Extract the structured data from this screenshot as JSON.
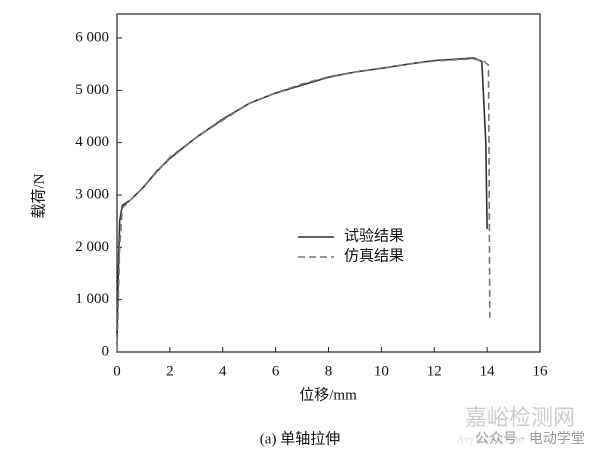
{
  "chart_data": {
    "type": "line",
    "xlabel": "位移/mm",
    "ylabel": "载荷/N",
    "caption": "(a) 单轴拉伸",
    "watermark": [
      "嘉峪检测网",
      "AnyTesting.com",
      "公众号 · 电动学堂"
    ],
    "xlim": [
      0,
      16
    ],
    "xticks": [
      0,
      2,
      4,
      6,
      8,
      10,
      12,
      14,
      16
    ],
    "ylim": [
      0,
      6000
    ],
    "yticks": [
      0,
      {
        "value": 1000,
        "label": "1 000"
      },
      {
        "value": 2000,
        "label": "2 000"
      },
      {
        "value": 3000,
        "label": "3 000"
      },
      {
        "value": 4000,
        "label": "4 000"
      },
      {
        "value": 5000,
        "label": "5 000"
      },
      {
        "value": 6000,
        "label": "6 000"
      }
    ],
    "legend": "center",
    "series": [
      {
        "name": "试验结果",
        "color": "#333333",
        "dash": "solid",
        "x": [
          0,
          0.05,
          0.1,
          0.2,
          0.5,
          1,
          1.5,
          2,
          3,
          4,
          5,
          6,
          7,
          8,
          9,
          10,
          11,
          12,
          13,
          13.5,
          13.8,
          13.95,
          14.0
        ],
        "values": [
          300,
          1500,
          2500,
          2800,
          2900,
          3150,
          3450,
          3700,
          4100,
          4450,
          4750,
          4950,
          5100,
          5250,
          5350,
          5420,
          5500,
          5570,
          5600,
          5620,
          5550,
          4000,
          2350
        ]
      },
      {
        "name": "仿真结果",
        "color": "#777777",
        "dash": "dashed",
        "x": [
          0,
          0.1,
          0.2,
          0.5,
          1,
          2,
          3,
          4,
          5,
          6,
          7,
          8,
          9,
          10,
          11,
          12,
          13,
          13.5,
          13.9,
          14.05,
          14.07,
          14.1
        ],
        "values": [
          0,
          2000,
          2750,
          2900,
          3150,
          3720,
          4100,
          4430,
          4750,
          4950,
          5120,
          5260,
          5350,
          5420,
          5500,
          5560,
          5590,
          5600,
          5550,
          5480,
          4000,
          650
        ]
      }
    ]
  }
}
